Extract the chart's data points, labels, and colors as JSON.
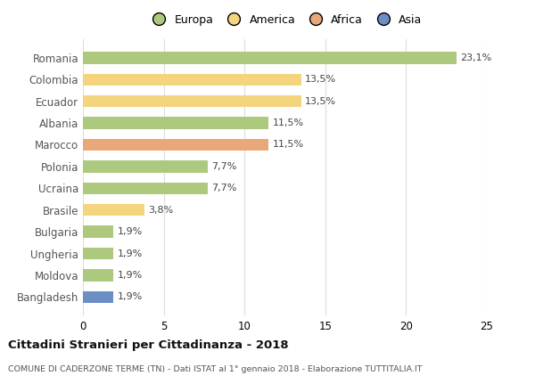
{
  "countries": [
    "Romania",
    "Colombia",
    "Ecuador",
    "Albania",
    "Marocco",
    "Polonia",
    "Ucraina",
    "Brasile",
    "Bulgaria",
    "Ungheria",
    "Moldova",
    "Bangladesh"
  ],
  "values": [
    23.1,
    13.5,
    13.5,
    11.5,
    11.5,
    7.7,
    7.7,
    3.8,
    1.9,
    1.9,
    1.9,
    1.9
  ],
  "labels": [
    "23,1%",
    "13,5%",
    "13,5%",
    "11,5%",
    "11,5%",
    "7,7%",
    "7,7%",
    "3,8%",
    "1,9%",
    "1,9%",
    "1,9%",
    "1,9%"
  ],
  "colors": [
    "#adc97e",
    "#f5d47e",
    "#f5d47e",
    "#adc97e",
    "#e8a87a",
    "#adc97e",
    "#adc97e",
    "#f5d47e",
    "#adc97e",
    "#adc97e",
    "#adc97e",
    "#6b8ec4"
  ],
  "legend_labels": [
    "Europa",
    "America",
    "Africa",
    "Asia"
  ],
  "legend_colors": [
    "#adc97e",
    "#f5d47e",
    "#e8a87a",
    "#6b8ec4"
  ],
  "title": "Cittadini Stranieri per Cittadinanza - 2018",
  "subtitle": "COMUNE DI CADERZONE TERME (TN) - Dati ISTAT al 1° gennaio 2018 - Elaborazione TUTTITALIA.IT",
  "xlim": [
    0,
    25
  ],
  "xticks": [
    0,
    5,
    10,
    15,
    20,
    25
  ],
  "bg_color": "#ffffff",
  "grid_color": "#dddddd",
  "bar_height": 0.55
}
